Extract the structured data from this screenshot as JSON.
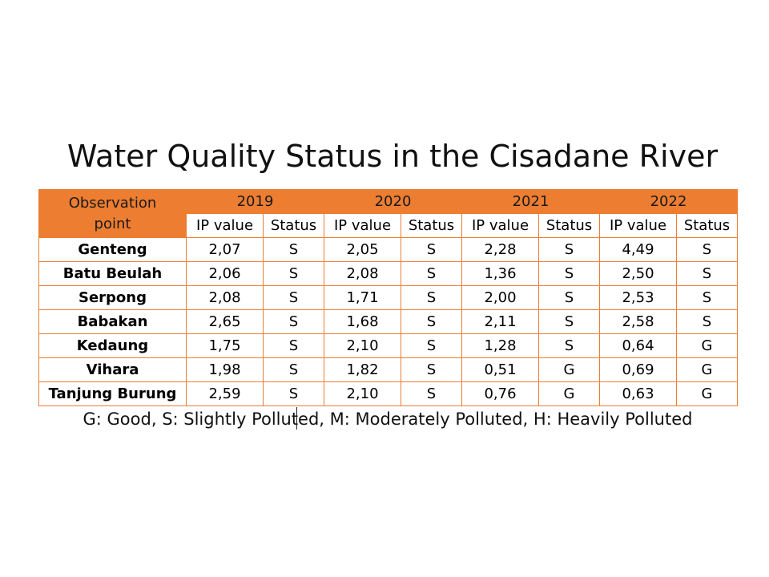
{
  "title": "Water Quality Status in the Cisadane River",
  "table": {
    "observation_header": "Observation point",
    "years": [
      "2019",
      "2020",
      "2021",
      "2022"
    ],
    "sub_headers": [
      "IP value",
      "Status"
    ],
    "rows": [
      {
        "site": "Genteng",
        "cells": [
          "2,07",
          "S",
          "2,05",
          "S",
          "2,28",
          "S",
          "4,49",
          "S"
        ]
      },
      {
        "site": "Batu Beulah",
        "cells": [
          "2,06",
          "S",
          "2,08",
          "S",
          "1,36",
          "S",
          "2,50",
          "S"
        ]
      },
      {
        "site": "Serpong",
        "cells": [
          "2,08",
          "S",
          "1,71",
          "S",
          "2,00",
          "S",
          "2,53",
          "S"
        ]
      },
      {
        "site": "Babakan",
        "cells": [
          "2,65",
          "S",
          "1,68",
          "S",
          "2,11",
          "S",
          "2,58",
          "S"
        ]
      },
      {
        "site": "Kedaung",
        "cells": [
          "1,75",
          "S",
          "2,10",
          "S",
          "1,28",
          "S",
          "0,64",
          "G"
        ]
      },
      {
        "site": "Vihara",
        "cells": [
          "1,98",
          "S",
          "1,82",
          "S",
          "0,51",
          "G",
          "0,69",
          "G"
        ]
      },
      {
        "site": "Tanjung Burung",
        "cells": [
          "2,59",
          "S",
          "2,10",
          "S",
          "0,76",
          "G",
          "0,63",
          "G"
        ]
      }
    ]
  },
  "legend": "G: Good, S: Slightly Polluted, M: Moderately Polluted, H: Heavily Polluted",
  "colors": {
    "header_fill": "#ed7d31",
    "grid_line": "#ed7d31"
  }
}
